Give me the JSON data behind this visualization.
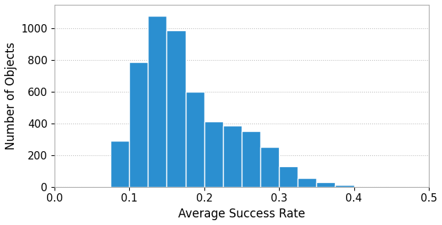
{
  "bin_edges": [
    0.075,
    0.1,
    0.125,
    0.15,
    0.175,
    0.2,
    0.225,
    0.25,
    0.275,
    0.3,
    0.325,
    0.35,
    0.375,
    0.4
  ],
  "heights": [
    290,
    790,
    1080,
    990,
    600,
    415,
    385,
    350,
    250,
    130,
    55,
    30,
    12
  ],
  "bar_color": "#2b8fd0",
  "bar_edgecolor": "#ffffff",
  "bar_linewidth": 1.0,
  "xlabel": "Average Success Rate",
  "ylabel": "Number of Objects",
  "xlim": [
    0.0,
    0.5
  ],
  "ylim": [
    0,
    1150
  ],
  "xticks": [
    0.0,
    0.1,
    0.2,
    0.3,
    0.4,
    0.5
  ],
  "yticks": [
    0,
    200,
    400,
    600,
    800,
    1000
  ],
  "grid_style": "dotted",
  "grid_color": "#bbbbbb",
  "grid_linewidth": 0.8,
  "background_color": "#ffffff",
  "spine_color": "#aaaaaa",
  "xlabel_fontsize": 12,
  "ylabel_fontsize": 12,
  "tick_fontsize": 11
}
